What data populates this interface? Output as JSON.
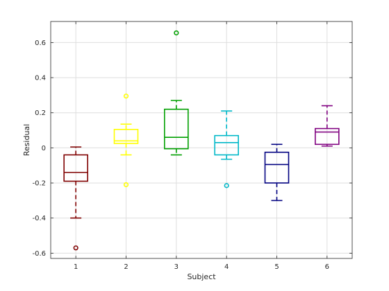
{
  "chart_data": {
    "type": "box",
    "xlabel": "Subject",
    "ylabel": "Residual",
    "categories": [
      "1",
      "2",
      "3",
      "4",
      "5",
      "6"
    ],
    "ylim": [
      -0.63,
      0.72
    ],
    "yticks": [
      -0.6,
      -0.4,
      -0.2,
      0,
      0.2,
      0.4,
      0.6
    ],
    "ytick_labels": [
      "-0.6",
      "-0.4",
      "-0.2",
      "0",
      "0.2",
      "0.4",
      "0.6"
    ],
    "grid": true,
    "boxes": [
      {
        "category": "1",
        "color": "#800000",
        "whisker_low": -0.4,
        "q1": -0.19,
        "median": -0.14,
        "q3": -0.04,
        "whisker_high": 0.005,
        "outliers": [
          -0.57
        ]
      },
      {
        "category": "2",
        "color": "#ffff00",
        "whisker_low": -0.04,
        "q1": 0.025,
        "median": 0.04,
        "q3": 0.105,
        "whisker_high": 0.135,
        "outliers": [
          0.295,
          -0.21
        ]
      },
      {
        "category": "3",
        "color": "#00a000",
        "whisker_low": -0.04,
        "q1": -0.005,
        "median": 0.06,
        "q3": 0.22,
        "whisker_high": 0.27,
        "outliers": [
          0.655
        ]
      },
      {
        "category": "4",
        "color": "#00b8c8",
        "whisker_low": -0.065,
        "q1": -0.04,
        "median": 0.03,
        "q3": 0.07,
        "whisker_high": 0.21,
        "outliers": [
          -0.215
        ]
      },
      {
        "category": "5",
        "color": "#000080",
        "whisker_low": -0.3,
        "q1": -0.2,
        "median": -0.095,
        "q3": -0.025,
        "whisker_high": 0.02,
        "outliers": []
      },
      {
        "category": "6",
        "color": "#800080",
        "whisker_low": 0.01,
        "q1": 0.02,
        "median": 0.09,
        "q3": 0.11,
        "whisker_high": 0.24,
        "outliers": []
      }
    ]
  }
}
